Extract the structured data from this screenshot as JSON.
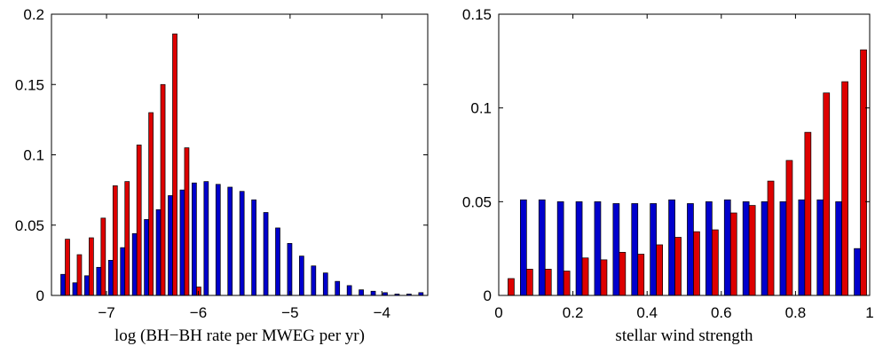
{
  "chart_data": [
    {
      "type": "bar",
      "xlabel": "log (BH−BH rate per MWEG per yr)",
      "ylabel": "",
      "xlim": [
        -7.6,
        -3.5
      ],
      "ylim": [
        0,
        0.2
      ],
      "xticks": [
        -7,
        -6,
        -5,
        -4
      ],
      "xtick_labels": [
        "−7",
        "−6",
        "−5",
        "−4"
      ],
      "yticks": [
        0,
        0.05,
        0.1,
        0.15,
        0.2
      ],
      "ytick_labels": [
        "0",
        "0.05",
        "0.1",
        "0.15",
        "0.2"
      ],
      "grid": false,
      "x": [
        -7.45,
        -7.32,
        -7.19,
        -7.06,
        -6.93,
        -6.8,
        -6.67,
        -6.54,
        -6.41,
        -6.28,
        -6.15,
        -6.02,
        -5.89,
        -5.76,
        -5.63,
        -5.5,
        -5.37,
        -5.24,
        -5.11,
        -4.98,
        -4.85,
        -4.72,
        -4.59,
        -4.46,
        -4.33,
        -4.2,
        -4.07,
        -3.94,
        -3.81,
        -3.68,
        -3.55
      ],
      "series": [
        {
          "color": "#0000cc",
          "values": [
            0.015,
            0.009,
            0.014,
            0.02,
            0.025,
            0.034,
            0.044,
            0.054,
            0.061,
            0.071,
            0.075,
            0.08,
            0.081,
            0.079,
            0.077,
            0.074,
            0.068,
            0.059,
            0.048,
            0.037,
            0.028,
            0.021,
            0.016,
            0.01,
            0.007,
            0.004,
            0.003,
            0.002,
            0.001,
            0.001,
            0.002
          ]
        },
        {
          "color": "#dd0000",
          "values": [
            0.04,
            0.029,
            0.041,
            0.055,
            0.078,
            0.081,
            0.107,
            0.13,
            0.15,
            0.186,
            0.105,
            0.006,
            0.0,
            0.0,
            0.0,
            0.0,
            0.0,
            0.0,
            0.0,
            0.0,
            0.0,
            0.0,
            0.0,
            0.0,
            0.0,
            0.0,
            0.0,
            0.0,
            0.0,
            0.0,
            0.0
          ]
        }
      ]
    },
    {
      "type": "bar",
      "xlabel": "stellar wind strength",
      "ylabel": "",
      "xlim": [
        0,
        1
      ],
      "ylim": [
        0,
        0.15
      ],
      "xticks": [
        0,
        0.2,
        0.4,
        0.6,
        0.8,
        1
      ],
      "xtick_labels": [
        "0",
        "0.2",
        "0.4",
        "0.6",
        "0.8",
        "1"
      ],
      "yticks": [
        0,
        0.05,
        0.1,
        0.15
      ],
      "ytick_labels": [
        "0",
        "0.05",
        "0.1",
        "0.15"
      ],
      "grid": false,
      "x": [
        0.025,
        0.075,
        0.125,
        0.175,
        0.225,
        0.275,
        0.325,
        0.375,
        0.425,
        0.475,
        0.525,
        0.575,
        0.625,
        0.675,
        0.725,
        0.775,
        0.825,
        0.875,
        0.925,
        0.975
      ],
      "series": [
        {
          "color": "#0000cc",
          "values": [
            0.0,
            0.051,
            0.051,
            0.05,
            0.05,
            0.05,
            0.049,
            0.049,
            0.049,
            0.051,
            0.049,
            0.05,
            0.051,
            0.05,
            0.05,
            0.05,
            0.051,
            0.051,
            0.05,
            0.025
          ]
        },
        {
          "color": "#dd0000",
          "values": [
            0.009,
            0.014,
            0.014,
            0.013,
            0.02,
            0.019,
            0.023,
            0.022,
            0.027,
            0.031,
            0.034,
            0.035,
            0.044,
            0.048,
            0.061,
            0.072,
            0.087,
            0.108,
            0.114,
            0.131
          ]
        }
      ]
    }
  ]
}
